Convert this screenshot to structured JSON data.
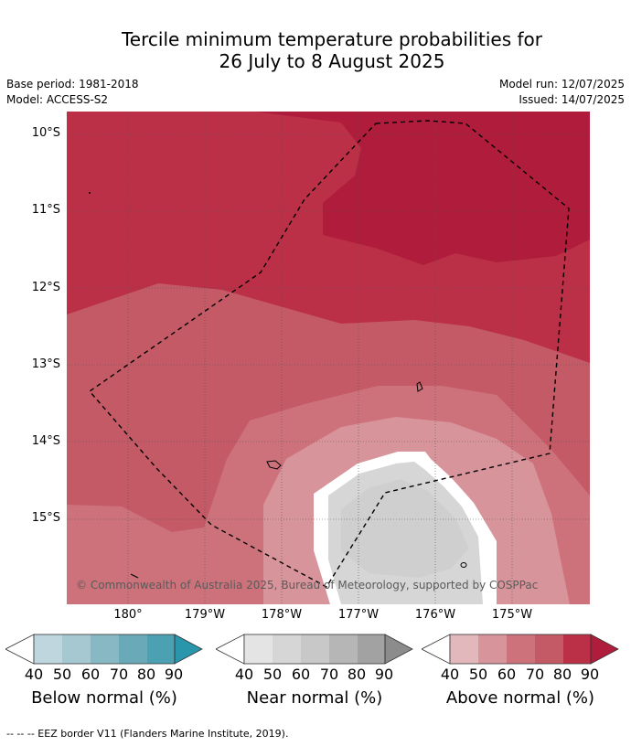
{
  "title_line1": "Tercile minimum temperature probabilities for",
  "title_line2": "26 July to 8 August 2025",
  "base_period": "Base period: 1981-2018",
  "model": "Model: ACCESS-S2",
  "model_run": "Model run: 12/07/2025",
  "issued": "Issued: 14/07/2025",
  "lat_labels": [
    "10°S",
    "11°S",
    "12°S",
    "13°S",
    "14°S",
    "15°S"
  ],
  "lon_labels": [
    "180°",
    "179°W",
    "178°W",
    "177°W",
    "176°W",
    "175°W"
  ],
  "copyright": "© Commonwealth of Australia 2025, Bureau of Meteorology, supported by COSPPac",
  "colorbars": [
    {
      "label": "Below normal (%)",
      "ticks": [
        "40",
        "50",
        "60",
        "70",
        "80",
        "90"
      ],
      "colors": [
        "#ffffff",
        "#bfd6de",
        "#a6c9d1",
        "#88b8c4",
        "#6aa9b7",
        "#4ba0b1",
        "#2a96ab"
      ]
    },
    {
      "label": "Near normal (%)",
      "ticks": [
        "40",
        "50",
        "60",
        "70",
        "80",
        "90"
      ],
      "colors": [
        "#ffffff",
        "#e4e4e4",
        "#d6d6d6",
        "#c8c8c8",
        "#b6b6b6",
        "#a2a2a2",
        "#8c8c8c"
      ]
    },
    {
      "label": "Above normal (%)",
      "ticks": [
        "40",
        "50",
        "60",
        "70",
        "80",
        "90"
      ],
      "colors": [
        "#ffffff",
        "#e2b8bd",
        "#d8949b",
        "#cd727b",
        "#c45a66",
        "#bb3046",
        "#b01c3b"
      ]
    }
  ],
  "footer": "-- -- -- EEZ border V11 (Flanders Marine Institute, 2019).",
  "map_colors": {
    "above_90": "#b01c3b",
    "above_80": "#bb3046",
    "above_70": "#c45a66",
    "above_60": "#cd727b",
    "above_50": "#d8949b",
    "above_40": "#e2b8bd",
    "near_40": "#d6d6d6",
    "white": "#ffffff"
  }
}
